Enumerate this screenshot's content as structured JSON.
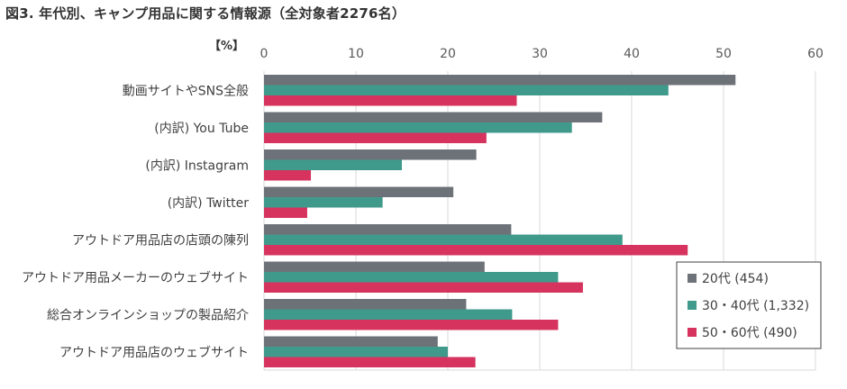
{
  "title": "図3. 年代別、キャンプ用品に関する情報源（全対象者2276名）",
  "chart_data": {
    "type": "bar",
    "orientation": "horizontal",
    "unit_label": "【%】",
    "categories": [
      "動画サイトやSNS全般",
      "(内訳) You Tube",
      "(内訳) Instagram",
      "(内訳) Twitter",
      "アウトドア用品店の店頭の陳列",
      "アウトドア用品メーカーのウェブサイト",
      "総合オンラインショップの製品紹介",
      "アウトドア用品店のウェブサイト"
    ],
    "series": [
      {
        "name": "20代 (454)",
        "color": "#6d7278",
        "values": [
          51.3,
          36.8,
          23.1,
          20.6,
          26.9,
          24.0,
          22.0,
          18.9
        ]
      },
      {
        "name": "30・40代 (1,332)",
        "color": "#3f9a8c",
        "values": [
          44.0,
          33.5,
          15.0,
          12.9,
          39.0,
          32.0,
          27.0,
          20.0
        ]
      },
      {
        "name": "50・60代 (490)",
        "color": "#d6335e",
        "values": [
          27.5,
          24.2,
          5.1,
          4.7,
          46.1,
          34.7,
          32.0,
          23.0
        ]
      }
    ],
    "xlim": [
      0,
      60
    ],
    "xticks": [
      "0",
      "10",
      "20",
      "30",
      "40",
      "50",
      "60"
    ],
    "grid": true,
    "legend_position": "bottom-right"
  }
}
